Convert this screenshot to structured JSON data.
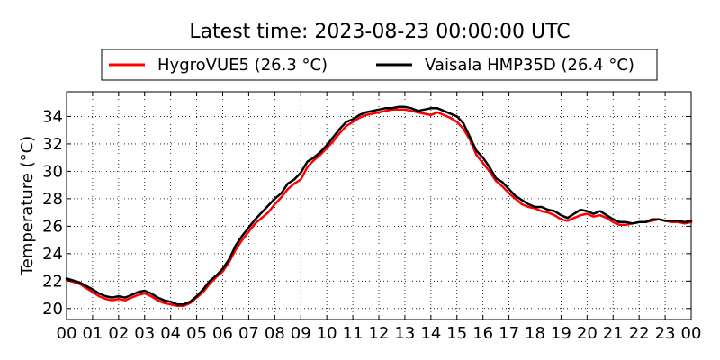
{
  "chart_data": {
    "type": "line",
    "title": "Latest time: 2023-08-23 00:00:00 UTC",
    "xlabel": "",
    "ylabel": "Temperature (°C)",
    "xlim": [
      0,
      24
    ],
    "ylim": [
      19.2,
      35.8
    ],
    "x_ticks": [
      "00",
      "01",
      "02",
      "03",
      "04",
      "05",
      "06",
      "07",
      "08",
      "09",
      "10",
      "11",
      "12",
      "13",
      "14",
      "15",
      "16",
      "17",
      "18",
      "19",
      "20",
      "21",
      "22",
      "23",
      "00"
    ],
    "y_ticks": [
      20,
      22,
      24,
      26,
      28,
      30,
      32,
      34
    ],
    "grid": true,
    "legend_position": "top",
    "x": [
      0,
      0.5,
      1,
      1.25,
      1.5,
      1.75,
      2,
      2.25,
      2.5,
      2.75,
      3,
      3.25,
      3.5,
      3.75,
      4,
      4.25,
      4.5,
      4.75,
      5,
      5.25,
      5.5,
      5.75,
      6,
      6.25,
      6.5,
      6.75,
      7,
      7.25,
      7.5,
      7.75,
      8,
      8.25,
      8.5,
      8.75,
      9,
      9.25,
      9.5,
      9.75,
      10,
      10.25,
      10.5,
      10.75,
      11,
      11.25,
      11.5,
      11.75,
      12,
      12.25,
      12.5,
      12.75,
      13,
      13.25,
      13.5,
      13.75,
      14,
      14.25,
      14.5,
      14.75,
      15,
      15.25,
      15.5,
      15.75,
      16,
      16.25,
      16.5,
      16.75,
      17,
      17.25,
      17.5,
      17.75,
      18,
      18.25,
      18.5,
      18.75,
      19,
      19.25,
      19.5,
      19.75,
      20,
      20.25,
      20.5,
      20.75,
      21,
      21.25,
      21.5,
      21.75,
      22,
      22.25,
      22.5,
      22.75,
      23,
      23.25,
      23.5,
      23.75,
      24
    ],
    "series": [
      {
        "name": "HygroVUE5 (26.3 °C)",
        "color": "#ff0000",
        "values": [
          22.1,
          21.8,
          21.2,
          20.9,
          20.7,
          20.6,
          20.7,
          20.6,
          20.8,
          21.0,
          21.1,
          20.9,
          20.6,
          20.4,
          20.3,
          20.2,
          20.2,
          20.4,
          20.8,
          21.2,
          21.8,
          22.3,
          22.7,
          23.4,
          24.3,
          25.0,
          25.6,
          26.2,
          26.6,
          27.0,
          27.6,
          28.1,
          28.7,
          29.1,
          29.4,
          30.3,
          30.8,
          31.2,
          31.7,
          32.2,
          32.8,
          33.3,
          33.6,
          33.9,
          34.1,
          34.2,
          34.3,
          34.4,
          34.5,
          34.5,
          34.5,
          34.4,
          34.3,
          34.2,
          34.1,
          34.3,
          34.1,
          33.9,
          33.6,
          33.1,
          32.3,
          31.2,
          30.6,
          30.0,
          29.3,
          28.9,
          28.4,
          28.0,
          27.6,
          27.4,
          27.3,
          27.1,
          27.0,
          26.8,
          26.5,
          26.4,
          26.6,
          26.8,
          26.9,
          26.7,
          26.8,
          26.6,
          26.3,
          26.1,
          26.1,
          26.2,
          26.3,
          26.3,
          26.4,
          26.5,
          26.4,
          26.3,
          26.3,
          26.2,
          26.3
        ],
        "label": "HygroVUE5 (26.3 °C)"
      },
      {
        "name": "Vaisala HMP35D (26.4 °C)",
        "color": "#000000",
        "values": [
          22.2,
          21.9,
          21.4,
          21.1,
          20.9,
          20.8,
          20.9,
          20.8,
          21.0,
          21.2,
          21.3,
          21.1,
          20.8,
          20.6,
          20.5,
          20.3,
          20.3,
          20.5,
          20.9,
          21.4,
          22.0,
          22.4,
          22.9,
          23.6,
          24.6,
          25.3,
          25.9,
          26.5,
          27.0,
          27.5,
          28.0,
          28.4,
          29.1,
          29.4,
          29.9,
          30.7,
          31.0,
          31.4,
          31.9,
          32.5,
          33.1,
          33.6,
          33.8,
          34.1,
          34.3,
          34.4,
          34.5,
          34.6,
          34.6,
          34.7,
          34.7,
          34.6,
          34.4,
          34.5,
          34.6,
          34.6,
          34.4,
          34.2,
          34.0,
          33.5,
          32.5,
          31.5,
          31.0,
          30.3,
          29.5,
          29.2,
          28.7,
          28.2,
          27.9,
          27.6,
          27.4,
          27.4,
          27.2,
          27.1,
          26.8,
          26.6,
          26.9,
          27.2,
          27.1,
          26.9,
          27.1,
          26.8,
          26.5,
          26.3,
          26.3,
          26.2,
          26.3,
          26.3,
          26.5,
          26.5,
          26.4,
          26.4,
          26.4,
          26.3,
          26.4
        ],
        "label": "Vaisala HMP35D (26.4 °C)"
      }
    ]
  }
}
